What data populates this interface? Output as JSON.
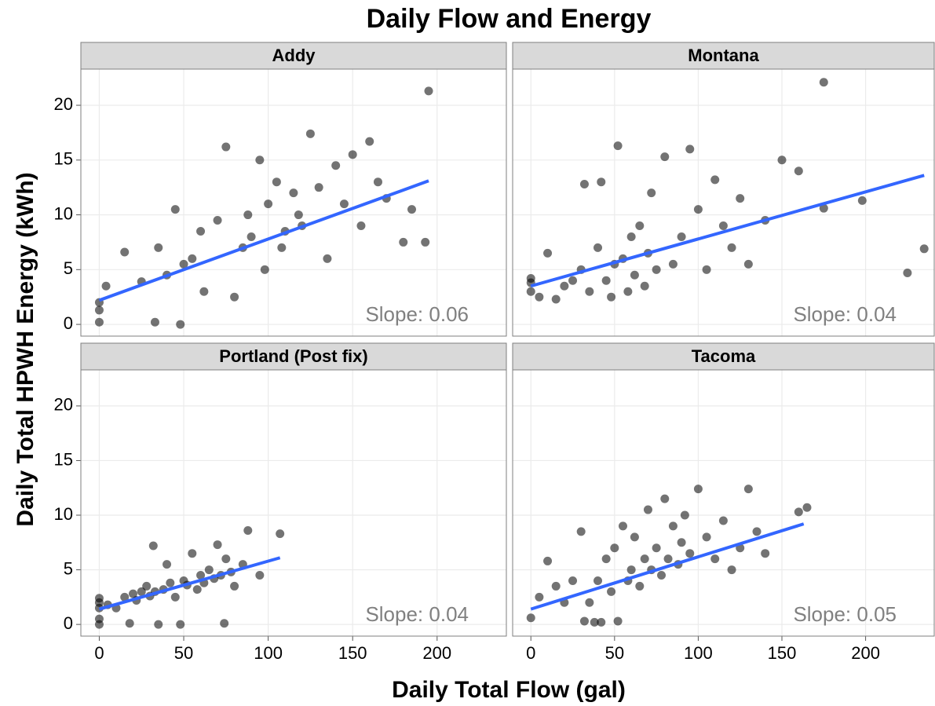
{
  "chart_data": {
    "type": "scatter",
    "title": "Daily Flow and Energy",
    "x_label": "Daily Total Flow (gal)",
    "y_label": "Daily Total HPWH Energy (kWh)",
    "xlim": [
      -10.9,
      241
    ],
    "ylim": [
      -1.07,
      23.3
    ],
    "xticks": [
      0,
      50,
      100,
      150,
      200
    ],
    "yticks": [
      0,
      5,
      10,
      15,
      20
    ],
    "grid": true,
    "point_color": "#000000",
    "fit_color": "#3366ff",
    "panels": [
      {
        "name": "Addy",
        "annotation": "Slope: 0.06",
        "x": [
          0,
          0,
          0,
          4,
          15,
          25,
          33,
          35,
          40,
          45,
          48,
          50,
          55,
          60,
          62,
          70,
          75,
          80,
          85,
          88,
          90,
          95,
          98,
          100,
          105,
          108,
          110,
          115,
          118,
          120,
          125,
          130,
          135,
          140,
          145,
          150,
          155,
          160,
          165,
          170,
          180,
          185,
          195,
          193
        ],
        "y": [
          0.2,
          1.3,
          2,
          3.5,
          6.6,
          3.9,
          0.2,
          7,
          4.5,
          10.5,
          0,
          5.5,
          6,
          8.5,
          3,
          9.5,
          16.2,
          2.5,
          7,
          10,
          8,
          15,
          5,
          11,
          13,
          7,
          8.5,
          12,
          10,
          9,
          17.4,
          12.5,
          6,
          14.5,
          11,
          15.5,
          9,
          16.7,
          13,
          11.5,
          7.5,
          10.5,
          21.3,
          7.5
        ],
        "fit": {
          "x": [
            0,
            195
          ],
          "y": [
            2.2,
            13.1
          ]
        }
      },
      {
        "name": "Montana",
        "annotation": "Slope: 0.04",
        "x": [
          0,
          0,
          0,
          5,
          10,
          15,
          20,
          25,
          30,
          32,
          35,
          40,
          42,
          45,
          48,
          50,
          52,
          55,
          58,
          60,
          62,
          65,
          68,
          70,
          72,
          75,
          80,
          85,
          90,
          95,
          100,
          105,
          110,
          115,
          120,
          125,
          130,
          140,
          150,
          160,
          175,
          175,
          198,
          225,
          235
        ],
        "y": [
          3,
          3.8,
          4.2,
          2.5,
          6.5,
          2.3,
          3.5,
          4,
          5,
          12.8,
          3,
          7,
          13,
          4,
          2.5,
          5.5,
          16.3,
          6,
          3,
          8,
          4.5,
          9,
          3.5,
          6.5,
          12,
          5,
          15.3,
          5.5,
          8,
          16,
          10.5,
          5,
          13.2,
          9,
          7,
          11.5,
          5.5,
          9.5,
          15,
          14,
          22.1,
          10.6,
          11.3,
          4.7,
          6.9
        ],
        "fit": {
          "x": [
            0,
            235
          ],
          "y": [
            3.5,
            13.6
          ]
        }
      },
      {
        "name": "Portland (Post fix)",
        "annotation": "Slope: 0.04",
        "x": [
          0,
          0,
          0,
          0,
          0,
          5,
          10,
          15,
          18,
          20,
          22,
          25,
          28,
          30,
          32,
          33,
          35,
          38,
          40,
          42,
          45,
          48,
          50,
          52,
          55,
          58,
          60,
          62,
          65,
          68,
          70,
          72,
          74,
          75,
          78,
          80,
          85,
          88,
          95,
          107
        ],
        "y": [
          0,
          0.5,
          1.5,
          2,
          2.4,
          1.8,
          1.5,
          2.5,
          0.1,
          2.8,
          2.2,
          3,
          3.5,
          2.6,
          7.2,
          3,
          0,
          3.2,
          5.5,
          3.8,
          2.5,
          0,
          4,
          3.6,
          6.5,
          3.2,
          4.5,
          3.8,
          5,
          4.2,
          7.3,
          4.5,
          0.1,
          6,
          4.8,
          3.5,
          5.5,
          8.6,
          4.5,
          8.3
        ],
        "fit": {
          "x": [
            0,
            107
          ],
          "y": [
            1.4,
            6.1
          ]
        }
      },
      {
        "name": "Tacoma",
        "annotation": "Slope: 0.05",
        "x": [
          0,
          5,
          10,
          15,
          20,
          25,
          30,
          32,
          35,
          38,
          40,
          42,
          45,
          48,
          50,
          52,
          55,
          58,
          60,
          62,
          65,
          68,
          70,
          72,
          75,
          78,
          80,
          82,
          85,
          88,
          90,
          92,
          95,
          100,
          105,
          110,
          115,
          120,
          125,
          130,
          135,
          140,
          160,
          165
        ],
        "y": [
          0.6,
          2.5,
          5.8,
          3.5,
          2,
          4,
          8.5,
          0.3,
          2,
          0.2,
          4,
          0.2,
          6,
          3,
          7,
          0.3,
          9,
          4,
          5,
          8,
          3.5,
          6,
          10.5,
          5,
          7,
          4.5,
          11.5,
          6,
          9,
          5.5,
          7.5,
          10,
          6.5,
          12.4,
          8,
          6,
          9.5,
          5,
          7,
          12.4,
          8.5,
          6.5,
          10.3,
          10.7
        ],
        "fit": {
          "x": [
            0,
            163
          ],
          "y": [
            1.4,
            9.2
          ]
        }
      }
    ]
  }
}
